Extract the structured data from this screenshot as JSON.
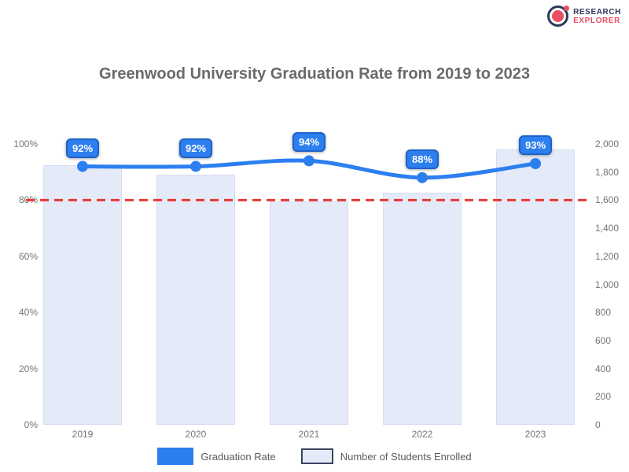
{
  "logo": {
    "line1": "RESEARCH",
    "line2": "EXPLORER"
  },
  "title": "Greenwood University Graduation Rate from 2019 to 2023",
  "chart_data": {
    "type": "combo-bar-line-dual-axis",
    "categories": [
      "2019",
      "2020",
      "2021",
      "2022",
      "2023"
    ],
    "series": [
      {
        "name": "Graduation Rate",
        "type": "line",
        "axis": "left",
        "unit": "%",
        "values": [
          92,
          92,
          94,
          88,
          93
        ],
        "point_labels": [
          "92%",
          "92%",
          "94%",
          "88%",
          "93%"
        ],
        "color": "#2d7ff0"
      },
      {
        "name": "Number of Students Enrolled",
        "type": "bar",
        "axis": "right",
        "values": [
          1850,
          1780,
          1590,
          1650,
          1960
        ],
        "color": "#e5eaf8"
      }
    ],
    "threshold": {
      "axis": "left",
      "value": 80,
      "style": "dashed",
      "color": "#e53935"
    },
    "axes": {
      "left": {
        "min": 0,
        "max": 100,
        "tick_values": [
          100,
          80,
          60,
          40,
          20,
          0
        ],
        "tick_labels": [
          "100%",
          "80%",
          "60%",
          "40%",
          "20%",
          "0%"
        ]
      },
      "right": {
        "min": 0,
        "max": 2000,
        "tick_values": [
          2000,
          1800,
          1600,
          1400,
          1200,
          1000,
          800,
          600,
          400,
          200,
          0
        ],
        "tick_labels": [
          "2,000",
          "1,800",
          "1,600",
          "1,400",
          "1,200",
          "1,000",
          "800",
          "600",
          "400",
          "200",
          "0"
        ]
      }
    },
    "legend": [
      {
        "label": "Graduation Rate",
        "swatch": "solid-blue"
      },
      {
        "label": "Number of Students Enrolled",
        "swatch": "outlined-lavender"
      }
    ]
  }
}
